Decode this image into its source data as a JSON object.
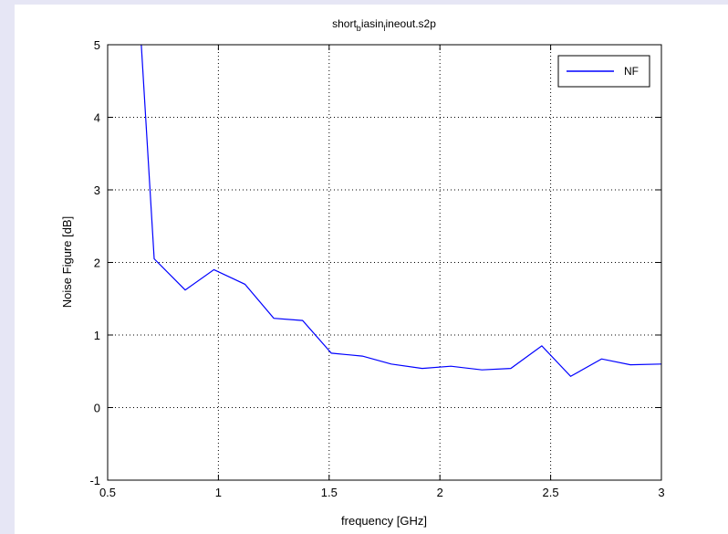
{
  "chart_data": {
    "type": "line",
    "title_main": "short",
    "title_parts": [
      {
        "text": "short",
        "script": "base"
      },
      {
        "text": "b",
        "script": "sub"
      },
      {
        "text": "iasin",
        "script": "base"
      },
      {
        "text": "l",
        "script": "sub"
      },
      {
        "text": "ineout.s2p",
        "script": "base"
      }
    ],
    "xlabel": "frequency [GHz]",
    "ylabel": "Noise Figure [dB]",
    "xlim": [
      0.5,
      3
    ],
    "ylim": [
      -1,
      5
    ],
    "xticks": [
      0.5,
      1,
      1.5,
      2,
      2.5,
      3
    ],
    "xtick_labels": [
      "0.5",
      "1",
      "1.5",
      "2",
      "2.5",
      "3"
    ],
    "yticks": [
      -1,
      0,
      1,
      2,
      3,
      4,
      5
    ],
    "ytick_labels": [
      "-1",
      "0",
      "1",
      "2",
      "3",
      "4",
      "5"
    ],
    "grid": true,
    "legend_position": "top-right",
    "series": [
      {
        "name": "NF",
        "color": "#0000ff",
        "x": [
          0.65,
          0.71,
          0.85,
          0.98,
          1.12,
          1.25,
          1.38,
          1.51,
          1.65,
          1.78,
          1.92,
          2.05,
          2.19,
          2.32,
          2.46,
          2.59,
          2.73,
          2.86,
          3.0
        ],
        "y": [
          5.1,
          2.05,
          1.62,
          1.9,
          1.7,
          1.23,
          1.2,
          0.75,
          0.71,
          0.6,
          0.54,
          0.57,
          0.52,
          0.54,
          0.85,
          0.43,
          0.67,
          0.59,
          0.6
        ]
      }
    ]
  }
}
